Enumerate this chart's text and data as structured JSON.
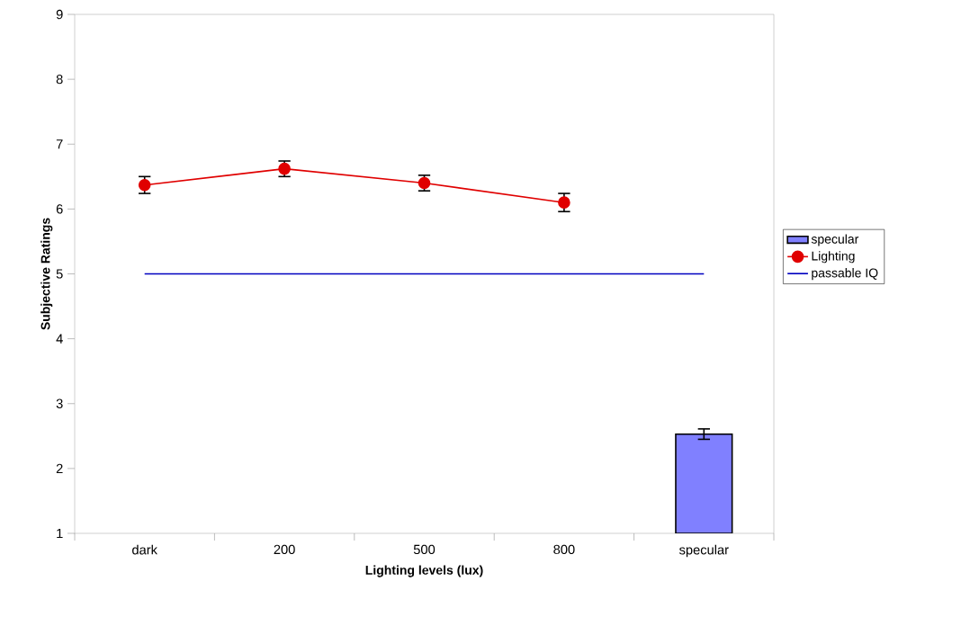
{
  "chart_data": {
    "type": "line",
    "xlabel": "Lighting levels (lux)",
    "ylabel": "Subjective Ratings",
    "categories": [
      "dark",
      "200",
      "500",
      "800",
      "specular"
    ],
    "ylim": [
      1,
      9
    ],
    "yticks": [
      1,
      2,
      3,
      4,
      5,
      6,
      7,
      8,
      9
    ],
    "grid": false,
    "legend": "right",
    "series": [
      {
        "name": "specular",
        "type": "bar",
        "color": "#8080ff",
        "values": [
          null,
          null,
          null,
          null,
          2.53
        ],
        "errors": [
          null,
          null,
          null,
          null,
          0.08
        ]
      },
      {
        "name": "Lighting",
        "color": "#e00000",
        "marker": "circle",
        "line_style": "solid",
        "values": [
          6.37,
          6.62,
          6.4,
          6.1,
          null
        ],
        "errors": [
          0.13,
          0.12,
          0.12,
          0.14,
          null
        ]
      },
      {
        "name": "passable IQ",
        "color": "#0000c0",
        "marker": "none",
        "line_style": "solid",
        "values": [
          5,
          5,
          5,
          5,
          5
        ]
      }
    ]
  }
}
